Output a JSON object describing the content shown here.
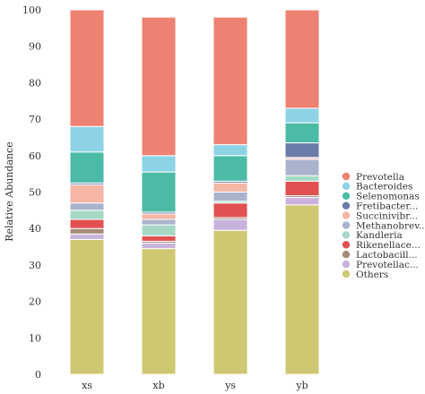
{
  "chart_data": {
    "type": "bar",
    "stacked": true,
    "categories": [
      "xs",
      "xb",
      "ys",
      "yb"
    ],
    "ylabel": "Relative Abundance",
    "xlabel": "",
    "ylim": [
      0,
      100
    ],
    "yticks": [
      0,
      10,
      20,
      30,
      40,
      50,
      60,
      70,
      80,
      90,
      100
    ],
    "legend_position": "right",
    "series": [
      {
        "name": "Others",
        "color": "#cfc872",
        "values": [
          37.0,
          34.5,
          39.5,
          46.5
        ]
      },
      {
        "name": "Prevotellac...",
        "color": "#c9b3dc",
        "values": [
          1.5,
          1.5,
          3.0,
          2.0
        ]
      },
      {
        "name": "Lactobacill...",
        "color": "#a68b7a",
        "values": [
          1.5,
          0.5,
          0.5,
          0.5
        ]
      },
      {
        "name": "Rikenellace...",
        "color": "#e15151",
        "values": [
          2.5,
          1.5,
          4.0,
          4.0
        ]
      },
      {
        "name": "Kandleria",
        "color": "#a5d9c5",
        "values": [
          2.5,
          3.0,
          0.5,
          1.5
        ]
      },
      {
        "name": "Methanobrev...",
        "color": "#a9b4cc",
        "values": [
          2.0,
          1.5,
          2.5,
          4.5
        ]
      },
      {
        "name": "Succinivibr...",
        "color": "#f6b6a5",
        "values": [
          5.0,
          1.5,
          2.5,
          0.5
        ]
      },
      {
        "name": "Fretibacter...",
        "color": "#6b7ca8",
        "values": [
          0.5,
          0.5,
          0.5,
          4.0
        ]
      },
      {
        "name": "Selenomonas",
        "color": "#4bbba6",
        "values": [
          8.5,
          11.0,
          7.0,
          5.5
        ]
      },
      {
        "name": "Bacteroides",
        "color": "#8dd3e5",
        "values": [
          7.0,
          4.5,
          3.0,
          4.0
        ]
      },
      {
        "name": "Prevotella",
        "color": "#ee8272",
        "values": [
          32.0,
          38.0,
          35.0,
          27.0
        ]
      }
    ],
    "legend_order": [
      "Prevotella",
      "Bacteroides",
      "Selenomonas",
      "Fretibacter...",
      "Succinivibr...",
      "Methanobrev...",
      "Kandleria",
      "Rikenellace...",
      "Lactobacill...",
      "Prevotellac...",
      "Others"
    ]
  }
}
